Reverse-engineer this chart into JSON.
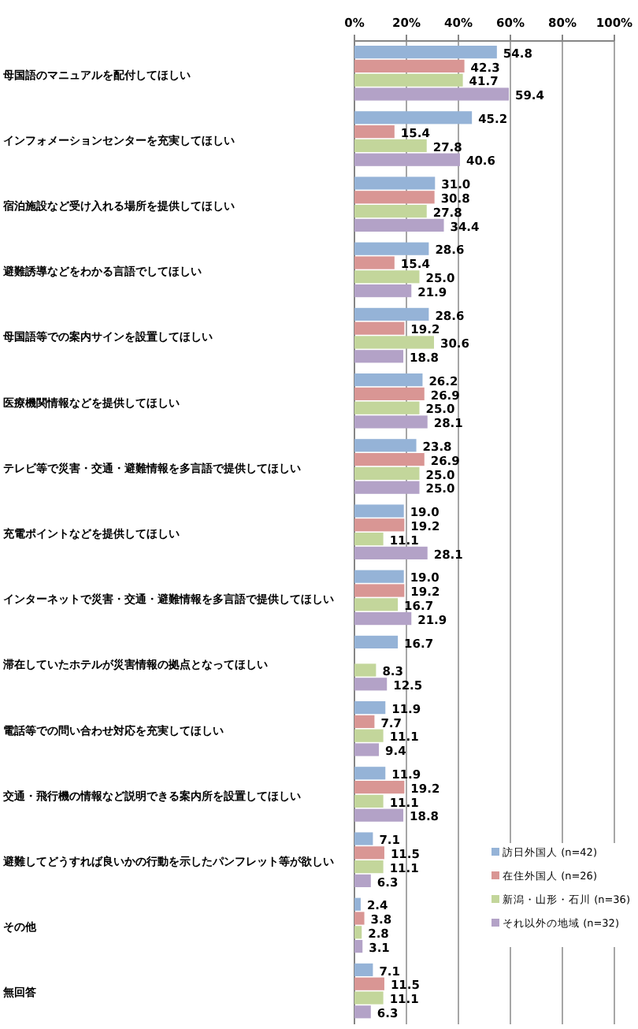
{
  "chart_data": {
    "type": "bar",
    "orientation": "horizontal",
    "grid": "x",
    "legend": "bottom right",
    "categories": [
      "母国語のマニュアルを配付してほしい",
      "インフォメーションセンターを充実してほしい",
      "宿泊施設など受け入れる場所を提供してほしい",
      "避難誘導などをわかる言語でしてほしい",
      "母国語等での案内サインを設置してほしい",
      "医療機関情報などを提供してほしい",
      "テレビ等で災害・交通・避難情報を多言語で提供してほしい",
      "充電ポイントなどを提供してほしい",
      "インターネットで災害・交通・避難情報を多言語で提供してほしい",
      "滞在していたホテルが災害情報の拠点となってほしい",
      "電話等での問い合わせ対応を充実してほしい",
      "交通・飛行機の情報など説明できる案内所を設置してほしい",
      "避難してどうすれば良いかの行動を示したパンフレット等が欲しい",
      "その他",
      "無回答"
    ],
    "series": [
      {
        "name": "訪日外国人 (n=42)",
        "color": "#95b3d7",
        "values": [
          54.8,
          45.2,
          31.0,
          28.6,
          28.6,
          26.2,
          23.8,
          19.0,
          19.0,
          16.7,
          11.9,
          11.9,
          7.1,
          2.4,
          7.1
        ],
        "value_labels": [
          "54.8",
          "45.2",
          "31.0",
          "28.6",
          "28.6",
          "26.2",
          "23.8",
          "19.0",
          "19.0",
          "16.7",
          "11.9",
          "11.9",
          "7.1",
          "2.4",
          "7.1"
        ]
      },
      {
        "name": "在住外国人 (n=26)",
        "color": "#d99694",
        "values": [
          42.3,
          15.4,
          30.8,
          15.4,
          19.2,
          26.9,
          26.9,
          19.2,
          19.2,
          null,
          7.7,
          19.2,
          11.5,
          3.8,
          11.5
        ],
        "value_labels": [
          "42.3",
          "15.4",
          "30.8",
          "15.4",
          "19.2",
          "26.9",
          "26.9",
          "19.2",
          "19.2",
          null,
          "7.7",
          "19.2",
          "11.5",
          "3.8",
          "11.5"
        ]
      },
      {
        "name": "新潟・山形・石川 (n=36)",
        "color": "#c3d69b",
        "values": [
          41.7,
          27.8,
          27.8,
          25.0,
          30.6,
          25.0,
          25.0,
          11.1,
          16.7,
          8.3,
          11.1,
          11.1,
          11.1,
          2.8,
          11.1
        ],
        "value_labels": [
          "41.7",
          "27.8",
          "27.8",
          "25.0",
          "30.6",
          "25.0",
          "25.0",
          "11.1",
          "16.7",
          "8.3",
          "11.1",
          "11.1",
          "11.1",
          "2.8",
          "11.1"
        ]
      },
      {
        "name": "それ以外の地域 (n=32)",
        "color": "#b3a2c7",
        "values": [
          59.4,
          40.6,
          34.4,
          21.9,
          18.8,
          28.1,
          25.0,
          28.1,
          21.9,
          12.5,
          9.4,
          18.8,
          6.3,
          3.1,
          6.3
        ],
        "value_labels": [
          "59.4",
          "40.6",
          "34.4",
          "21.9",
          "18.8",
          "28.1",
          "25.0",
          "28.1",
          "21.9",
          "12.5",
          "9.4",
          "18.8",
          "6.3",
          "3.1",
          "6.3"
        ]
      }
    ],
    "xlim": [
      0,
      100
    ],
    "xticks": [
      {
        "value": 0,
        "label": "0%"
      },
      {
        "value": 20,
        "label": "20%"
      },
      {
        "value": 40,
        "label": "40%"
      },
      {
        "value": 60,
        "label": "60%"
      },
      {
        "value": 80,
        "label": "80%"
      },
      {
        "value": 100,
        "label": "100%"
      }
    ]
  }
}
